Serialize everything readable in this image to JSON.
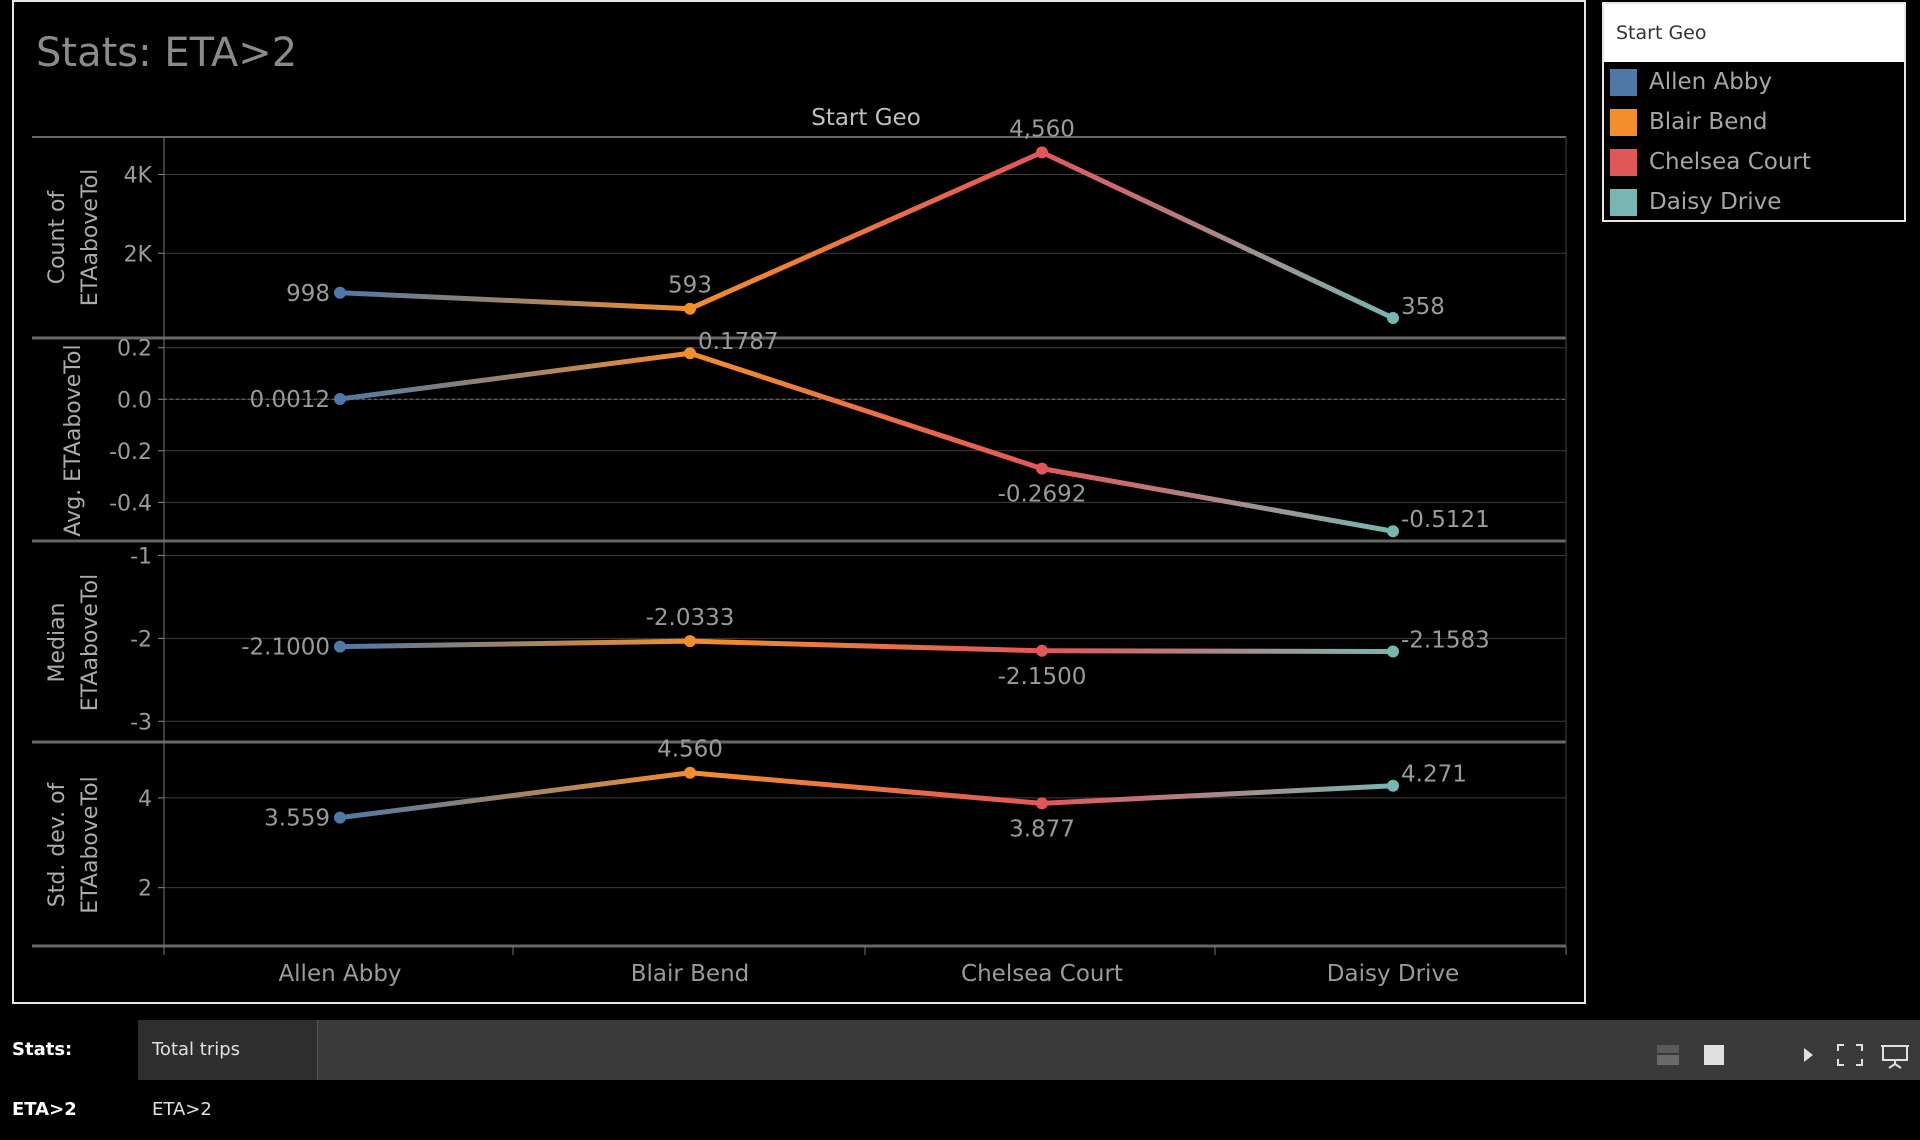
{
  "title": "Stats: ETA>2",
  "legend": {
    "title": "Start Geo",
    "items": [
      {
        "label": "Allen Abby",
        "color": "#4e79a7"
      },
      {
        "label": "Blair Bend",
        "color": "#f28e2b"
      },
      {
        "label": "Chelsea Court",
        "color": "#e15759"
      },
      {
        "label": "Daisy Drive",
        "color": "#76b7b2"
      }
    ]
  },
  "tabs": [
    {
      "label": "Stats: ETA>2",
      "active": true
    },
    {
      "label": "Total trips ETA>2",
      "active": false
    }
  ],
  "toolbar_icons": [
    "layout-icon",
    "square-icon",
    "play-icon",
    "fullscreen-icon",
    "presentation-icon"
  ],
  "chart_data": {
    "type": "line",
    "column_header": "Start Geo",
    "categories": [
      "Allen Abby",
      "Blair Bend",
      "Chelsea Court",
      "Daisy Drive"
    ],
    "panels": [
      {
        "ylabel": [
          "Count of",
          "ETAaboveTol"
        ],
        "values": [
          998,
          593,
          4560,
          358
        ],
        "labels": [
          "998",
          "593",
          "4,560",
          "358"
        ],
        "ticks": [
          "2K",
          "4K"
        ],
        "tick_values": [
          2000,
          4000
        ],
        "ylim": [
          -150,
          4950
        ]
      },
      {
        "ylabel": [
          "Avg. ETAaboveTol"
        ],
        "values": [
          0.0012,
          0.1787,
          -0.2692,
          -0.5121
        ],
        "labels": [
          "0.0012",
          "0.1787",
          "-0.2692",
          "-0.5121"
        ],
        "ticks": [
          "0.2",
          "0.0",
          "-0.2",
          "-0.4"
        ],
        "tick_values": [
          0.2,
          0.0,
          -0.2,
          -0.4
        ],
        "ylim": [
          -0.55,
          0.23
        ],
        "zero_line": true
      },
      {
        "ylabel": [
          "Median",
          "ETAaboveTol"
        ],
        "values": [
          -2.1,
          -2.0333,
          -2.15,
          -2.1583
        ],
        "labels": [
          "-2.1000",
          "-2.0333",
          "-2.1500",
          "-2.1583"
        ],
        "ticks": [
          "-1",
          "-2",
          "-3"
        ],
        "tick_values": [
          -1,
          -2,
          -3
        ],
        "ylim": [
          -3.25,
          -0.85
        ]
      },
      {
        "ylabel": [
          "Std. dev. of",
          "ETAaboveTol"
        ],
        "values": [
          3.559,
          4.56,
          3.877,
          4.271
        ],
        "labels": [
          "3.559",
          "4.560",
          "3.877",
          "4.271"
        ],
        "ticks": [
          "4",
          "2"
        ],
        "tick_values": [
          4,
          2
        ],
        "ylim": [
          0.7,
          5.2
        ]
      }
    ],
    "grid": true
  }
}
